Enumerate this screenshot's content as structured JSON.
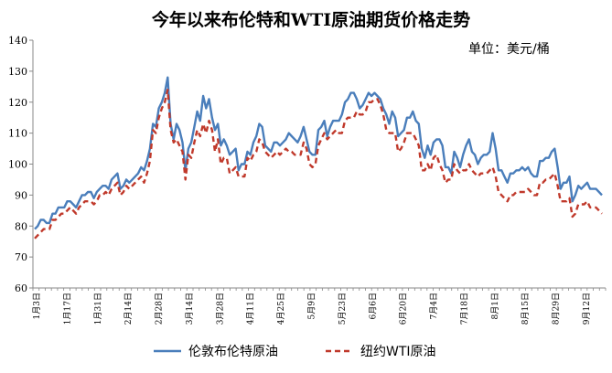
{
  "chart_data": {
    "type": "line",
    "title": "今年以来布伦特和WTI原油期货价格走势",
    "unit_label": "单位：美元/桶",
    "xlabel": "",
    "ylabel": "",
    "ylim": [
      60,
      140
    ],
    "yticks": [
      60,
      70,
      80,
      90,
      100,
      110,
      120,
      130,
      140
    ],
    "xticks": [
      "1月3日",
      "1月17日",
      "1月31日",
      "2月14日",
      "2月28日",
      "3月14日",
      "3月28日",
      "4月11日",
      "4月25日",
      "5月9日",
      "5月23日",
      "6月6日",
      "6月20日",
      "7月4日",
      "7月18日",
      "8月1日",
      "8月15日",
      "8月29日",
      "9月12日"
    ],
    "grid": false,
    "legend_position": "bottom",
    "series": [
      {
        "name": "伦敦布伦特原油",
        "color": "#4a7ebb",
        "style": "solid",
        "values": [
          79,
          80,
          82,
          82,
          81,
          81,
          84,
          84,
          86,
          86,
          86,
          88,
          88,
          87,
          86,
          88,
          90,
          90,
          91,
          91,
          89,
          91,
          92,
          93,
          93,
          92,
          95,
          96,
          97,
          92,
          93,
          95,
          94,
          95,
          96,
          97,
          99,
          98,
          101,
          105,
          113,
          112,
          118,
          120,
          123,
          128,
          113,
          108,
          113,
          111,
          107,
          98,
          105,
          107,
          112,
          117,
          114,
          122,
          118,
          121,
          115,
          111,
          113,
          106,
          108,
          106,
          103,
          104,
          105,
          98,
          100,
          100,
          104,
          103,
          107,
          109,
          113,
          112,
          106,
          105,
          104,
          107,
          107,
          106,
          107,
          108,
          110,
          109,
          108,
          107,
          109,
          112,
          108,
          104,
          103,
          103,
          111,
          112,
          114,
          109,
          112,
          114,
          114,
          114,
          116,
          120,
          121,
          123,
          123,
          121,
          118,
          119,
          121,
          123,
          122,
          123,
          122,
          121,
          118,
          116,
          113,
          117,
          115,
          109,
          110,
          111,
          115,
          115,
          117,
          114,
          113,
          105,
          102,
          106,
          103,
          107,
          108,
          108,
          106,
          99,
          99,
          97,
          104,
          102,
          99,
          103,
          106,
          108,
          104,
          103,
          100,
          102,
          103,
          103,
          104,
          110,
          105,
          98,
          98,
          96,
          94,
          97,
          97,
          98,
          98,
          99,
          98,
          99,
          97,
          96,
          96,
          101,
          101,
          102,
          102,
          104,
          105,
          99,
          92,
          94,
          94,
          96,
          88,
          90,
          93,
          92,
          93,
          94,
          92,
          92,
          92,
          91,
          90
        ],
        "data_name": "brent-line"
      },
      {
        "name": "纽约WTI原油",
        "color": "#c0392b",
        "style": "dashed",
        "values": [
          76,
          77,
          78,
          79,
          79,
          79,
          82,
          82,
          83,
          84,
          84,
          85,
          86,
          85,
          84,
          86,
          87,
          88,
          88,
          88,
          87,
          88,
          90,
          90,
          91,
          90,
          92,
          93,
          94,
          90,
          91,
          93,
          92,
          93,
          94,
          95,
          96,
          94,
          97,
          101,
          111,
          110,
          115,
          118,
          120,
          124,
          111,
          107,
          108,
          106,
          104,
          95,
          103,
          102,
          107,
          111,
          109,
          113,
          110,
          114,
          111,
          104,
          108,
          100,
          102,
          102,
          97,
          98,
          99,
          96,
          96,
          96,
          102,
          101,
          103,
          104,
          108,
          107,
          104,
          103,
          102,
          103,
          104,
          103,
          104,
          105,
          104,
          104,
          103,
          103,
          103,
          107,
          105,
          100,
          99,
          100,
          106,
          108,
          110,
          108,
          109,
          110,
          111,
          110,
          110,
          114,
          115,
          115,
          115,
          117,
          116,
          116,
          117,
          120,
          120,
          121,
          121,
          119,
          116,
          111,
          110,
          110,
          110,
          104,
          105,
          107,
          110,
          110,
          110,
          108,
          106,
          98,
          98,
          100,
          98,
          102,
          103,
          100,
          98,
          94,
          95,
          95,
          100,
          98,
          97,
          98,
          98,
          100,
          98,
          97,
          96,
          97,
          97,
          97,
          98,
          99,
          96,
          91,
          90,
          89,
          88,
          90,
          90,
          91,
          91,
          91,
          91,
          92,
          91,
          90,
          90,
          94,
          94,
          95,
          95,
          96,
          97,
          93,
          88,
          88,
          88,
          89,
          83,
          84,
          87,
          87,
          87,
          88,
          86,
          86,
          86,
          85,
          84
        ],
        "data_name": "wti-line"
      }
    ]
  }
}
